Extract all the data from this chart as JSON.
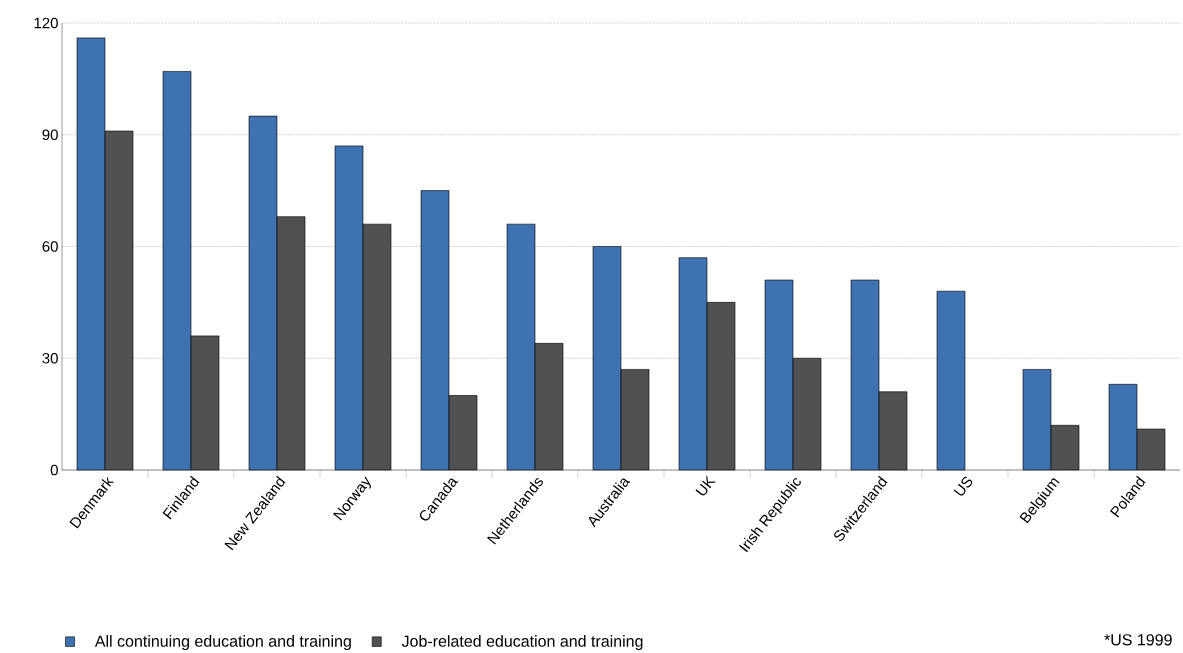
{
  "chart_data": {
    "type": "bar",
    "categories": [
      "Denmark",
      "Finland",
      "New Zealand",
      "Norway",
      "Canada",
      "Netherlands",
      "Australia",
      "UK",
      "Irish Republic",
      "Switzerland",
      "US",
      "Belgium",
      "Poland"
    ],
    "series": [
      {
        "name": "All continuing education and training",
        "color": "#3f72b0",
        "values": [
          116,
          107,
          95,
          87,
          75,
          66,
          60,
          57,
          51,
          51,
          48,
          27,
          23
        ]
      },
      {
        "name": "Job-related education and training",
        "color": "#505153",
        "values": [
          91,
          36,
          68,
          66,
          20,
          34,
          27,
          45,
          30,
          21,
          null,
          12,
          11
        ]
      }
    ],
    "ylim": [
      0,
      120
    ],
    "yticks": [
      0,
      30,
      60,
      90,
      120
    ],
    "grid": "y",
    "legend": "bottom",
    "annotations": [
      "*US 1999"
    ]
  }
}
